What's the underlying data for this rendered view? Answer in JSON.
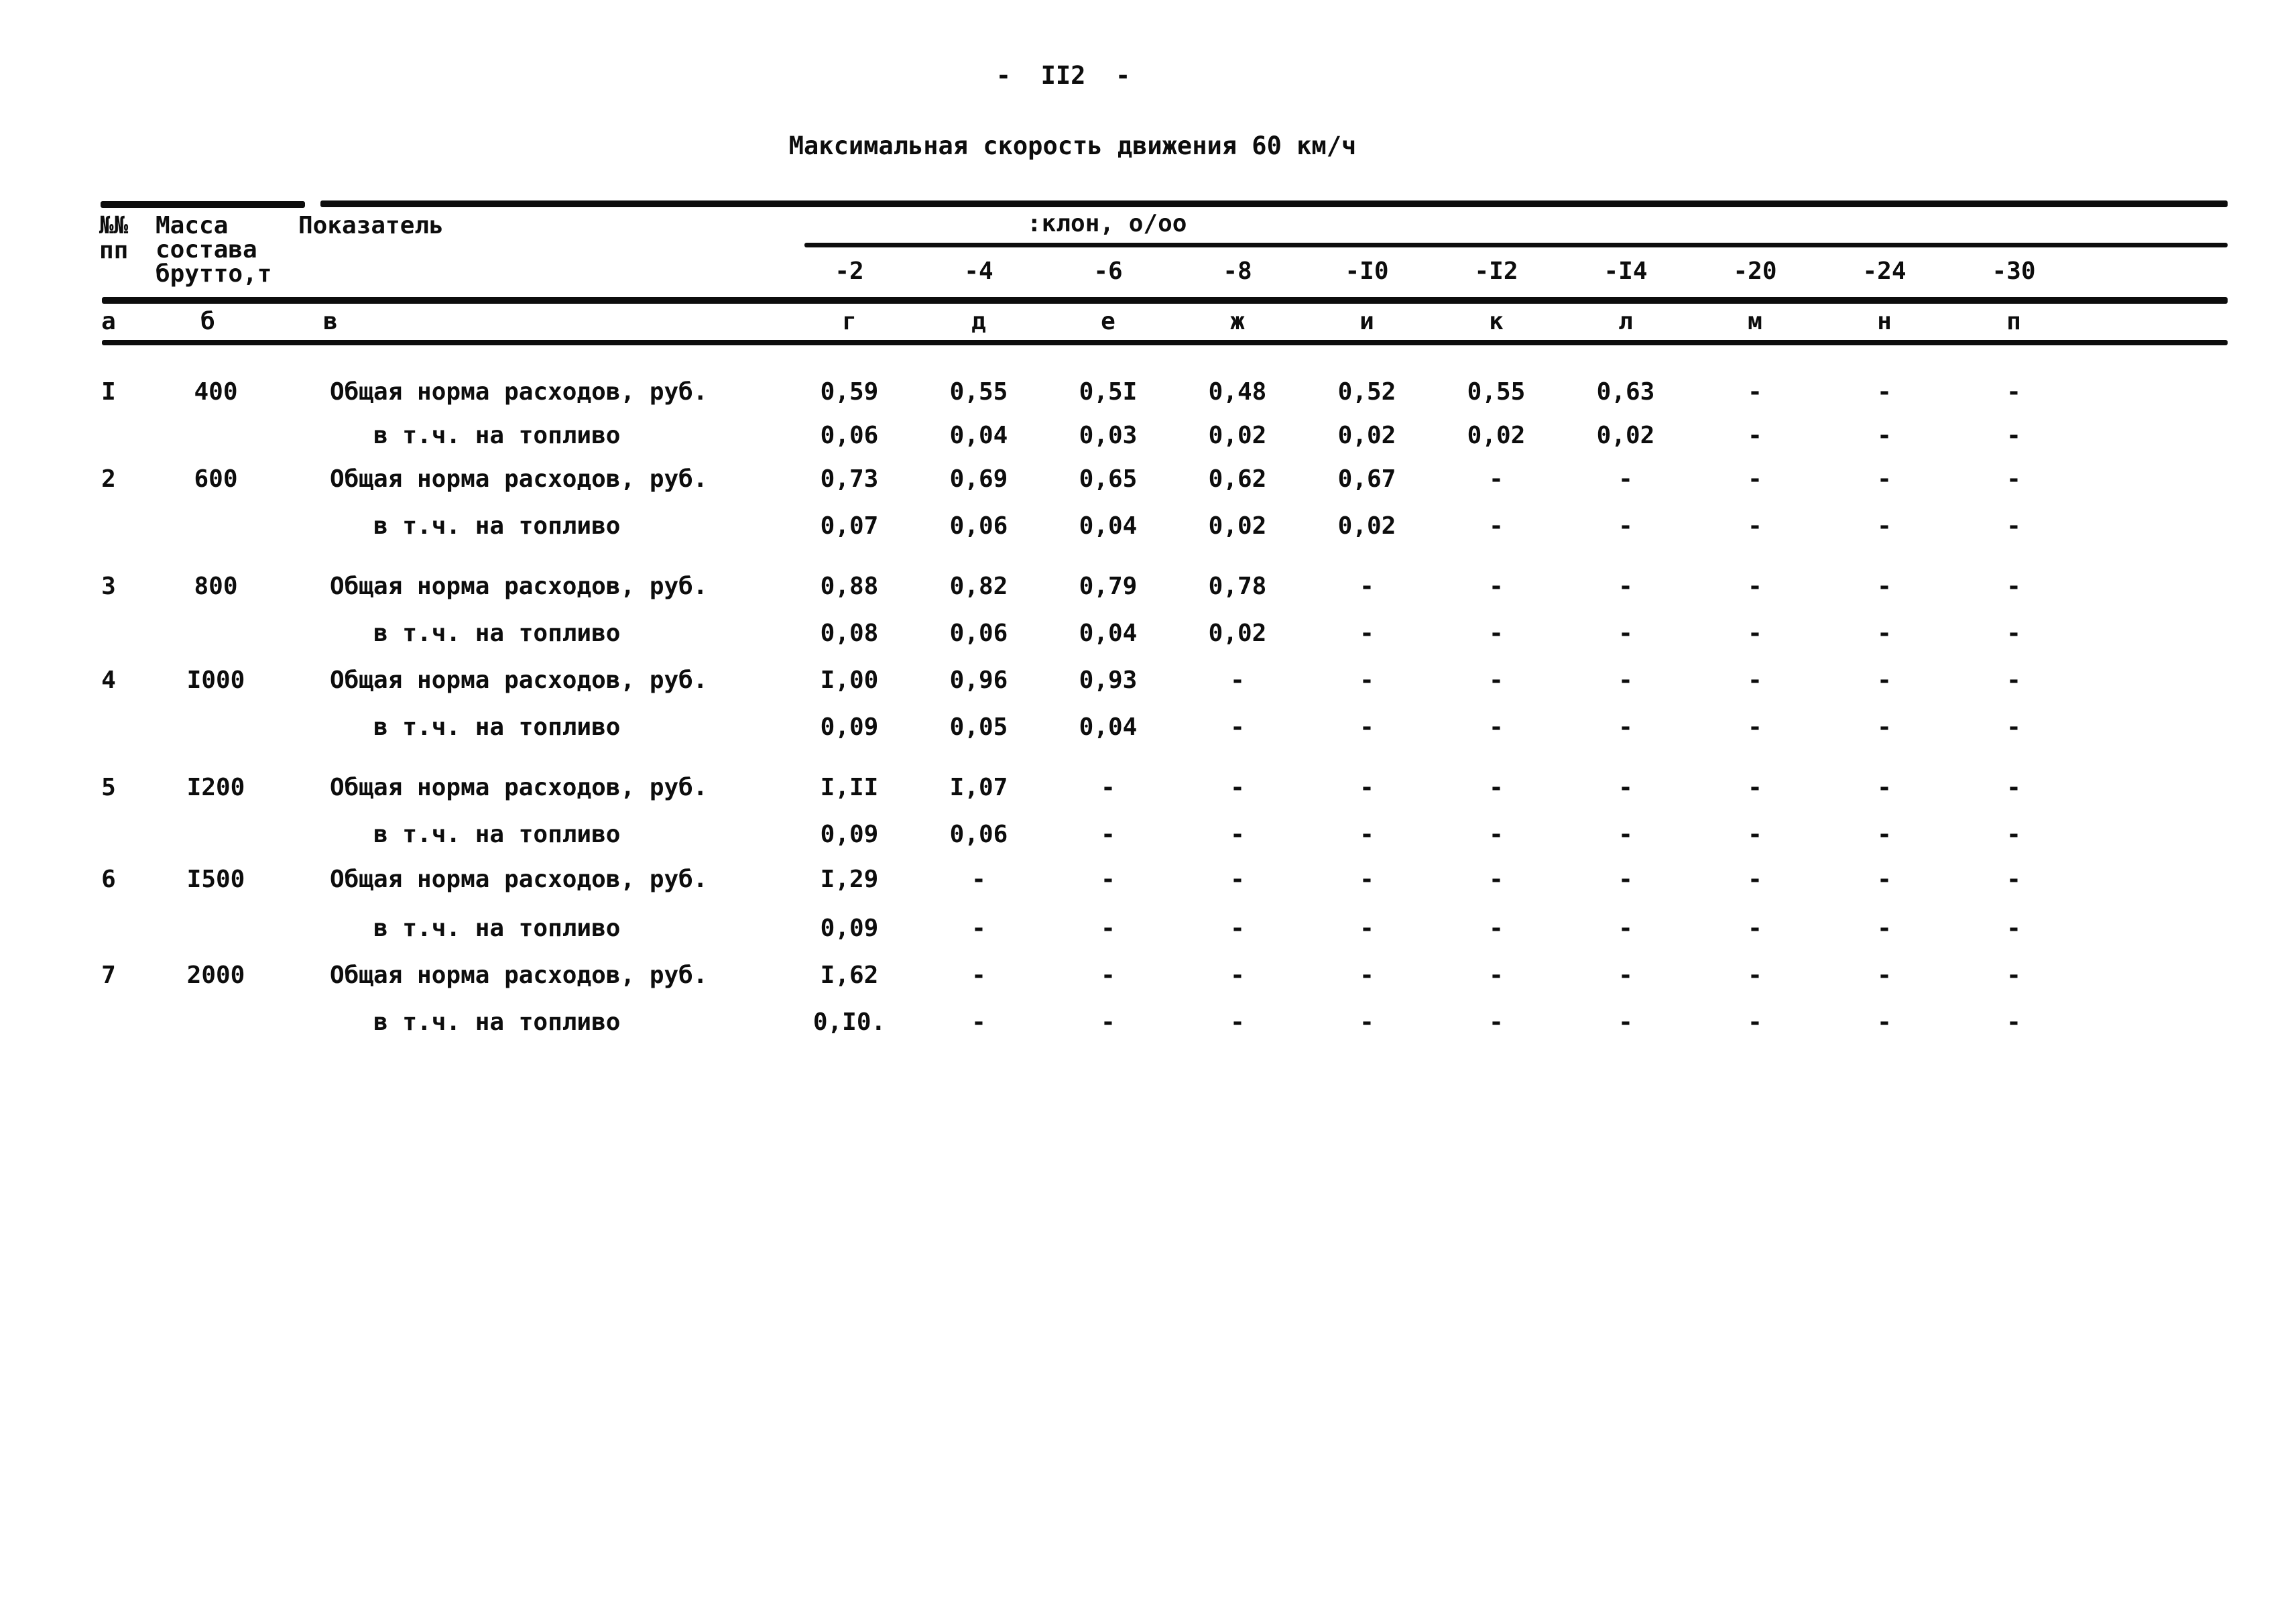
{
  "page": {
    "number_label": "-  II2  -",
    "title": "Максимальная скорость движения 60 км/ч"
  },
  "table": {
    "header": {
      "num_line1": "№№",
      "num_line2": "пп",
      "mass_lines": [
        "Масса",
        "состава",
        "брутто,т"
      ],
      "indicator_label": "Показатель",
      "slope_group_label": ":клон, о/оо",
      "slope_labels": [
        "-2",
        "-4",
        "-6",
        "-8",
        "-I0",
        "-I2",
        "-I4",
        "-20",
        "-24",
        "-30"
      ],
      "column_letters": [
        "а",
        "б",
        "в",
        "г",
        "д",
        "е",
        "ж",
        "и",
        "к",
        "л",
        "м",
        "н",
        "п"
      ]
    },
    "rows": [
      {
        "num": "I",
        "mass": "400",
        "sub": false,
        "indicator": "Общая норма расходов, руб.",
        "values": [
          "0,59",
          "0,55",
          "0,5I",
          "0,48",
          "0,52",
          "0,55",
          "0,63",
          "-",
          "-",
          "-"
        ]
      },
      {
        "num": "",
        "mass": "",
        "sub": true,
        "indicator": "в т.ч. на топливо",
        "values": [
          "0,06",
          "0,04",
          "0,03",
          "0,02",
          "0,02",
          "0,02",
          "0,02",
          "-",
          "-",
          "-"
        ]
      },
      {
        "num": "2",
        "mass": "600",
        "sub": false,
        "indicator": "Общая норма расходов, руб.",
        "values": [
          "0,73",
          "0,69",
          "0,65",
          "0,62",
          "0,67",
          "-",
          "-",
          "-",
          "-",
          "-"
        ]
      },
      {
        "num": "",
        "mass": "",
        "sub": true,
        "indicator": "в т.ч. на топливо",
        "values": [
          "0,07",
          "0,06",
          "0,04",
          "0,02",
          "0,02",
          "-",
          "-",
          "-",
          "-",
          "-"
        ]
      },
      {
        "num": "3",
        "mass": "800",
        "sub": false,
        "indicator": "Общая норма расходов, руб.",
        "values": [
          "0,88",
          "0,82",
          "0,79",
          "0,78",
          "-",
          "-",
          "-",
          "-",
          "-",
          "-"
        ]
      },
      {
        "num": "",
        "mass": "",
        "sub": true,
        "indicator": "в т.ч. на топливо",
        "values": [
          "0,08",
          "0,06",
          "0,04",
          "0,02",
          "-",
          "-",
          "-",
          "-",
          "-",
          "-"
        ]
      },
      {
        "num": "4",
        "mass": "I000",
        "sub": false,
        "indicator": "Общая норма расходов, руб.",
        "values": [
          "I,00",
          "0,96",
          "0,93",
          "-",
          "-",
          "-",
          "-",
          "-",
          "-",
          "-"
        ]
      },
      {
        "num": "",
        "mass": "",
        "sub": true,
        "indicator": "в т.ч. на топливо",
        "values": [
          "0,09",
          "0,05",
          "0,04",
          "-",
          "-",
          "-",
          "-",
          "-",
          "-",
          "-"
        ]
      },
      {
        "num": "5",
        "mass": "I200",
        "sub": false,
        "indicator": "Общая норма расходов, руб.",
        "values": [
          "I,II",
          "I,07",
          "-",
          "-",
          "-",
          "-",
          "-",
          "-",
          "-",
          "-"
        ]
      },
      {
        "num": "",
        "mass": "",
        "sub": true,
        "indicator": "в т.ч. на топливо",
        "values": [
          "0,09",
          "0,06",
          "-",
          "-",
          "-",
          "-",
          "-",
          "-",
          "-",
          "-"
        ]
      },
      {
        "num": "6",
        "mass": "I500",
        "sub": false,
        "indicator": "Общая норма расходов, руб.",
        "values": [
          "I,29",
          "-",
          "-",
          "-",
          "-",
          "-",
          "-",
          "-",
          "-",
          "-"
        ]
      },
      {
        "num": "",
        "mass": "",
        "sub": true,
        "indicator": "в т.ч. на топливо",
        "values": [
          "0,09",
          "-",
          "-",
          "-",
          "-",
          "-",
          "-",
          "-",
          "-",
          "-"
        ]
      },
      {
        "num": "7",
        "mass": "2000",
        "sub": false,
        "indicator": "Общая норма расходов, руб.",
        "values": [
          "I,62",
          "-",
          "-",
          "-",
          "-",
          "-",
          "-",
          "-",
          "-",
          "-"
        ]
      },
      {
        "num": "",
        "mass": "",
        "sub": true,
        "indicator": "в т.ч. на топливо",
        "values": [
          "0,I0.",
          "-",
          "-",
          "-",
          "-",
          "-",
          "-",
          "-",
          "-",
          "-"
        ]
      }
    ]
  }
}
